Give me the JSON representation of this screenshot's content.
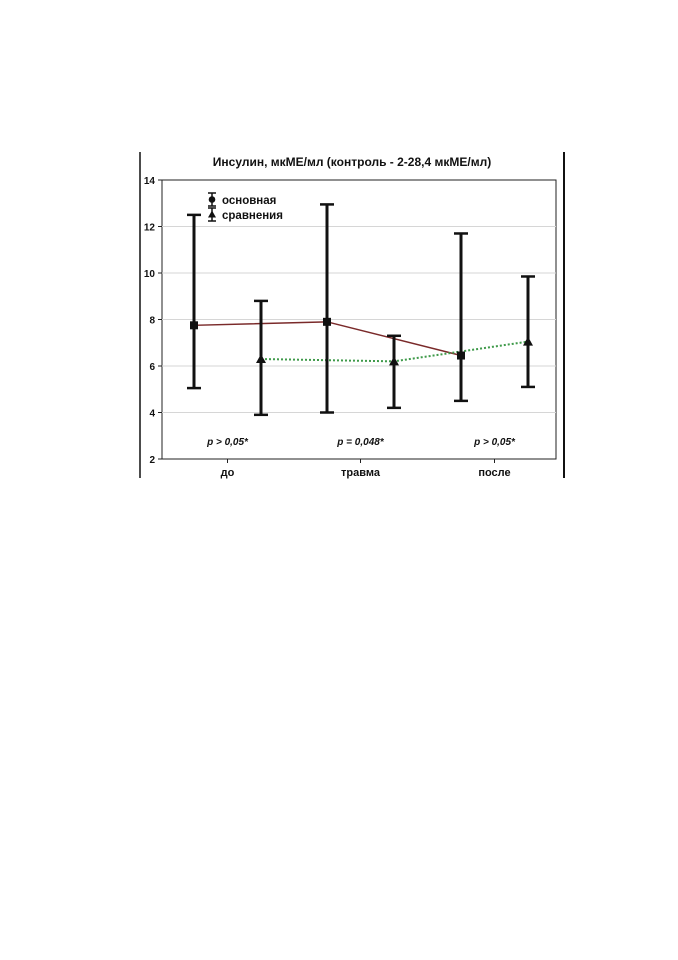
{
  "chart_data": {
    "type": "line",
    "title": "Инсулин, мкМЕ/мл (контроль - 2-28,4 мкМЕ/мл)",
    "xlabel": "",
    "ylabel": "",
    "categories": [
      "до",
      "травма",
      "после"
    ],
    "ylim": [
      2,
      14
    ],
    "yticks": [
      "2",
      "4",
      "6",
      "8",
      "10",
      "12",
      "14"
    ],
    "grid": true,
    "legend_position": "top-left",
    "series": [
      {
        "name": "основная",
        "marker": "square",
        "line_color": "#7a2a2a",
        "line_style": "solid",
        "values": [
          7.75,
          7.9,
          6.45
        ],
        "lower": [
          5.05,
          4.0,
          4.5
        ],
        "upper": [
          12.5,
          12.95,
          11.7
        ]
      },
      {
        "name": "сравнения",
        "marker": "triangle",
        "line_color": "#3f9a4a",
        "line_style": "dotted",
        "values": [
          6.3,
          6.2,
          7.05
        ],
        "lower": [
          3.9,
          4.2,
          5.1
        ],
        "upper": [
          8.8,
          7.3,
          9.85
        ]
      }
    ],
    "annotations": [
      "p > 0,05*",
      "p = 0,048*",
      "p > 0,05*"
    ]
  }
}
